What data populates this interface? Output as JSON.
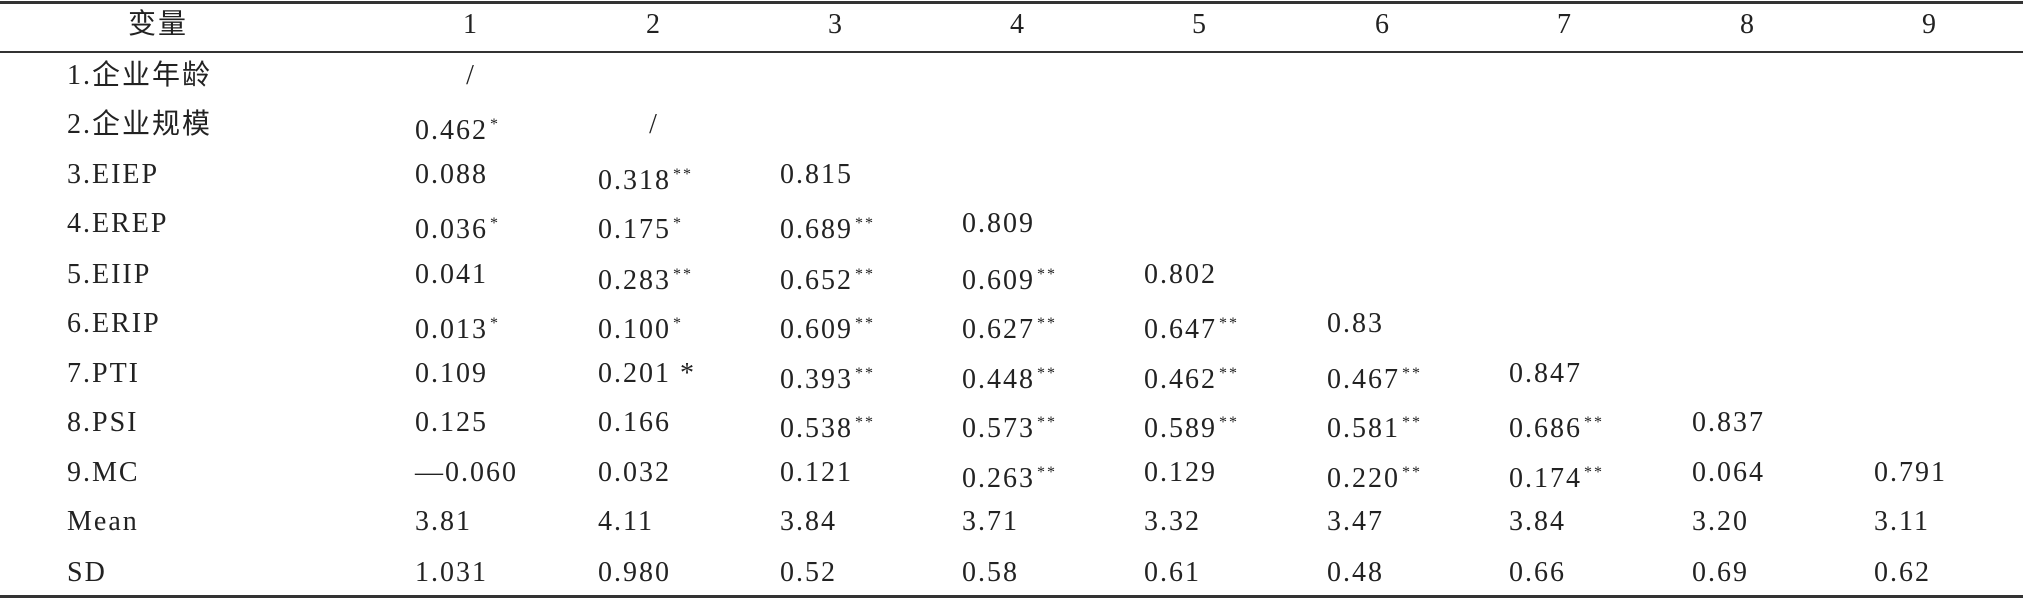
{
  "table": {
    "header": [
      "变量",
      "1",
      "2",
      "3",
      "4",
      "5",
      "6",
      "7",
      "8",
      "9"
    ],
    "rows": [
      {
        "label": "1.企业年龄",
        "cells": [
          {
            "value": "/"
          }
        ]
      },
      {
        "label": "2.企业规模",
        "cells": [
          {
            "value": "0.462",
            "sig": "*"
          },
          {
            "value": "/"
          }
        ]
      },
      {
        "label": "3.EIEP",
        "cells": [
          {
            "value": "0.088"
          },
          {
            "value": "0.318",
            "sig": "**"
          },
          {
            "value": "0.815"
          }
        ]
      },
      {
        "label": "4.EREP",
        "cells": [
          {
            "value": "0.036",
            "sig": "*"
          },
          {
            "value": "0.175",
            "sig": "*"
          },
          {
            "value": "0.689",
            "sig": "**"
          },
          {
            "value": "0.809"
          }
        ]
      },
      {
        "label": "5.EIIP",
        "cells": [
          {
            "value": "0.041"
          },
          {
            "value": "0.283",
            "sig": "**"
          },
          {
            "value": "0.652",
            "sig": "**"
          },
          {
            "value": "0.609",
            "sig": "**"
          },
          {
            "value": "0.802"
          }
        ]
      },
      {
        "label": "6.ERIP",
        "cells": [
          {
            "value": "0.013",
            "sig": "*"
          },
          {
            "value": "0.100",
            "sig": "*"
          },
          {
            "value": "0.609",
            "sig": "**"
          },
          {
            "value": "0.627",
            "sig": "**"
          },
          {
            "value": "0.647",
            "sig": "**"
          },
          {
            "value": "0.83"
          }
        ]
      },
      {
        "label": "7.PTI",
        "cells": [
          {
            "value": "0.109"
          },
          {
            "value": "0.201 *"
          },
          {
            "value": "0.393",
            "sig": "**"
          },
          {
            "value": "0.448",
            "sig": "**"
          },
          {
            "value": "0.462",
            "sig": "**"
          },
          {
            "value": "0.467",
            "sig": "**"
          },
          {
            "value": "0.847"
          }
        ]
      },
      {
        "label": "8.PSI",
        "cells": [
          {
            "value": "0.125"
          },
          {
            "value": "0.166"
          },
          {
            "value": "0.538",
            "sig": "**"
          },
          {
            "value": "0.573",
            "sig": "**"
          },
          {
            "value": "0.589",
            "sig": "**"
          },
          {
            "value": "0.581",
            "sig": "**"
          },
          {
            "value": "0.686",
            "sig": "**"
          },
          {
            "value": "0.837"
          }
        ]
      },
      {
        "label": "9.MC",
        "cells": [
          {
            "value": "—0.060"
          },
          {
            "value": "0.032"
          },
          {
            "value": "0.121"
          },
          {
            "value": "0.263",
            "sig": "**"
          },
          {
            "value": "0.129"
          },
          {
            "value": "0.220",
            "sig": "**"
          },
          {
            "value": "0.174",
            "sig": "**"
          },
          {
            "value": "0.064"
          },
          {
            "value": "0.791"
          }
        ]
      },
      {
        "label": "Mean",
        "cells": [
          {
            "value": "3.81"
          },
          {
            "value": "4.11"
          },
          {
            "value": "3.84"
          },
          {
            "value": "3.71"
          },
          {
            "value": "3.32"
          },
          {
            "value": "3.47"
          },
          {
            "value": "3.84"
          },
          {
            "value": "3.20"
          },
          {
            "value": "3.11"
          }
        ]
      },
      {
        "label": "SD",
        "cells": [
          {
            "value": "1.031"
          },
          {
            "value": "0.980"
          },
          {
            "value": "0.52"
          },
          {
            "value": "0.58"
          },
          {
            "value": "0.61"
          },
          {
            "value": "0.48"
          },
          {
            "value": "0.66"
          },
          {
            "value": "0.69"
          },
          {
            "value": "0.62"
          }
        ]
      }
    ]
  }
}
